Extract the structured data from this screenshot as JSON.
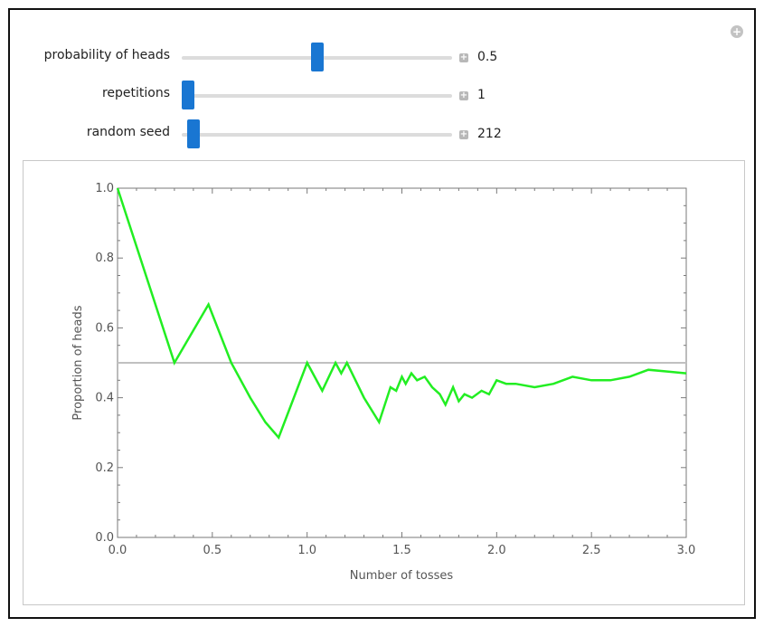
{
  "controls": [
    {
      "label": "probability of heads",
      "value": "0.5",
      "position": 0.5
    },
    {
      "label": "repetitions",
      "value": "1",
      "position": 0.0
    },
    {
      "label": "random seed",
      "value": "212",
      "position": 0.02
    }
  ],
  "icons": {
    "corner": "plus-circle-icon",
    "step": "plus-square-icon"
  },
  "colors": {
    "accent": "#1976d2",
    "series": "#22ee22",
    "reference": "#c0c0c0"
  },
  "chart_data": {
    "type": "line",
    "xlabel": "Number of tosses",
    "ylabel": "Proportion of heads",
    "xlim": [
      0,
      3
    ],
    "ylim": [
      0,
      1
    ],
    "xticks": [
      "0.0",
      "0.5",
      "1.0",
      "1.5",
      "2.0",
      "2.5",
      "3.0"
    ],
    "yticks": [
      "0.0",
      "0.2",
      "0.4",
      "0.6",
      "0.8",
      "1.0"
    ],
    "reference_y": 0.5,
    "series": [
      {
        "x": [
          0,
          0.3,
          0.48,
          0.6,
          0.7,
          0.78,
          0.85,
          1.0,
          1.08,
          1.15,
          1.18,
          1.21,
          1.3,
          1.38,
          1.44,
          1.47,
          1.5,
          1.52,
          1.55,
          1.58,
          1.62,
          1.66,
          1.7,
          1.73,
          1.77,
          1.8,
          1.83,
          1.87,
          1.92,
          1.96,
          2.0,
          2.05,
          2.1,
          2.2,
          2.3,
          2.4,
          2.5,
          2.6,
          2.7,
          2.8,
          2.9,
          3.0
        ],
        "y": [
          1.0,
          0.5,
          0.667,
          0.5,
          0.4,
          0.33,
          0.286,
          0.5,
          0.42,
          0.5,
          0.47,
          0.5,
          0.4,
          0.33,
          0.43,
          0.42,
          0.46,
          0.44,
          0.47,
          0.45,
          0.46,
          0.43,
          0.41,
          0.38,
          0.43,
          0.39,
          0.41,
          0.4,
          0.42,
          0.41,
          0.45,
          0.44,
          0.44,
          0.43,
          0.44,
          0.46,
          0.45,
          0.45,
          0.46,
          0.48,
          0.475,
          0.47
        ]
      }
    ]
  }
}
